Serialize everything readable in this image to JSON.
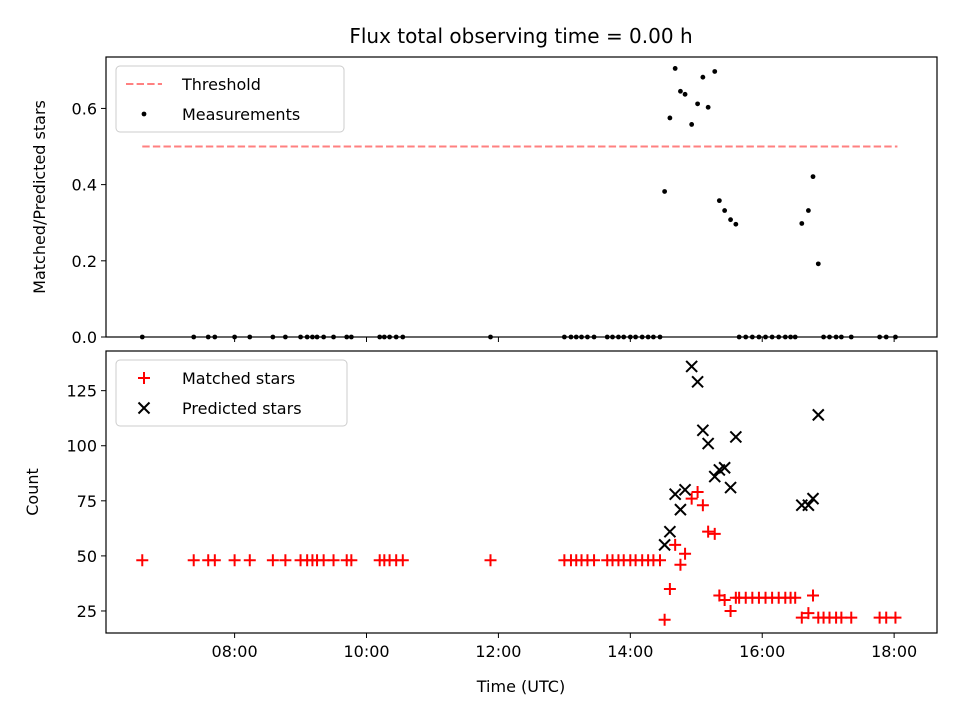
{
  "chart_data": [
    {
      "type": "scatter",
      "title": "Flux total observing time = 0.00 h",
      "ylabel": "Matched/Predicted stars",
      "xlabel": "",
      "x_unit": "hours (UTC)",
      "xlim": [
        6.05,
        18.65
      ],
      "ylim": [
        0,
        0.735
      ],
      "xticks": [
        8,
        10,
        12,
        14,
        16,
        18
      ],
      "xtick_labels": [
        "",
        "",
        "",
        "",
        "",
        ""
      ],
      "yticks": [
        0.0,
        0.2,
        0.4,
        0.6
      ],
      "ytick_labels": [
        "0.0",
        "0.2",
        "0.4",
        "0.6"
      ],
      "legend": {
        "placement": "upper-left"
      },
      "series": [
        {
          "name": "Threshold",
          "kind": "line",
          "style": "dashed",
          "color": "#ff8080",
          "x": [
            6.6,
            18.05
          ],
          "y": [
            0.5,
            0.5
          ]
        },
        {
          "name": "Measurements",
          "kind": "scatter",
          "marker": "dot",
          "color": "#000000",
          "x": [
            6.6,
            7.38,
            7.6,
            7.7,
            8.0,
            8.23,
            8.58,
            8.77,
            9.0,
            9.1,
            9.18,
            9.25,
            9.35,
            9.5,
            9.7,
            9.77,
            10.2,
            10.27,
            10.35,
            10.45,
            10.55,
            11.88,
            13.0,
            13.1,
            13.18,
            13.26,
            13.35,
            13.45,
            13.65,
            13.73,
            13.82,
            13.9,
            14.0,
            14.08,
            14.18,
            14.27,
            14.35,
            14.45,
            14.52,
            14.6,
            14.68,
            14.76,
            14.83,
            14.93,
            15.02,
            15.1,
            15.18,
            15.28,
            15.35,
            15.43,
            15.52,
            15.6,
            15.65,
            15.75,
            15.85,
            15.95,
            16.05,
            16.15,
            16.25,
            16.35,
            16.43,
            16.5,
            16.6,
            16.7,
            16.77,
            16.85,
            16.93,
            17.02,
            17.12,
            17.2,
            17.35,
            17.78,
            17.88,
            18.02
          ],
          "y": [
            0,
            0,
            0,
            0,
            0,
            0,
            0,
            0,
            0,
            0,
            0,
            0,
            0,
            0,
            0,
            0,
            0,
            0,
            0,
            0,
            0,
            0,
            0,
            0,
            0,
            0,
            0,
            0,
            0,
            0,
            0,
            0,
            0,
            0,
            0,
            0,
            0,
            0,
            0.382,
            0.575,
            0.705,
            0.645,
            0.637,
            0.558,
            0.612,
            0.682,
            0.603,
            0.697,
            0.358,
            0.332,
            0.308,
            0.296,
            0,
            0,
            0,
            0,
            0,
            0,
            0,
            0,
            0,
            0,
            0.298,
            0.332,
            0.421,
            0.192,
            0,
            0,
            0,
            0,
            0,
            0,
            0,
            0
          ]
        }
      ]
    },
    {
      "type": "scatter",
      "title": "",
      "ylabel": "Count",
      "xlabel": "Time (UTC)",
      "x_unit": "hours (UTC)",
      "xlim": [
        6.05,
        18.65
      ],
      "ylim": [
        15,
        143
      ],
      "xticks": [
        8,
        10,
        12,
        14,
        16,
        18
      ],
      "xtick_labels": [
        "08:00",
        "10:00",
        "12:00",
        "14:00",
        "16:00",
        "18:00"
      ],
      "yticks": [
        25,
        50,
        75,
        100,
        125
      ],
      "ytick_labels": [
        "25",
        "50",
        "75",
        "100",
        "125"
      ],
      "legend": {
        "placement": "upper-left"
      },
      "series": [
        {
          "name": "Matched stars",
          "kind": "scatter",
          "marker": "plus",
          "color": "#ff0000",
          "x": [
            6.6,
            7.38,
            7.6,
            7.7,
            8.0,
            8.23,
            8.58,
            8.77,
            9.0,
            9.1,
            9.18,
            9.25,
            9.35,
            9.5,
            9.7,
            9.77,
            10.2,
            10.27,
            10.35,
            10.45,
            10.55,
            11.88,
            13.0,
            13.1,
            13.18,
            13.26,
            13.35,
            13.45,
            13.65,
            13.73,
            13.82,
            13.9,
            14.0,
            14.08,
            14.18,
            14.27,
            14.35,
            14.45,
            14.52,
            14.6,
            14.68,
            14.76,
            14.83,
            14.93,
            15.02,
            15.1,
            15.18,
            15.28,
            15.35,
            15.43,
            15.52,
            15.6,
            15.65,
            15.75,
            15.85,
            15.95,
            16.05,
            16.15,
            16.25,
            16.35,
            16.43,
            16.5,
            16.6,
            16.7,
            16.77,
            16.85,
            16.93,
            17.02,
            17.12,
            17.2,
            17.35,
            17.78,
            17.88,
            18.02
          ],
          "y": [
            48,
            48,
            48,
            48,
            48,
            48,
            48,
            48,
            48,
            48,
            48,
            48,
            48,
            48,
            48,
            48,
            48,
            48,
            48,
            48,
            48,
            48,
            48,
            48,
            48,
            48,
            48,
            48,
            48,
            48,
            48,
            48,
            48,
            48,
            48,
            48,
            48,
            48,
            21,
            35,
            55,
            46,
            51,
            76,
            79,
            73,
            61,
            60,
            32,
            30,
            25,
            31,
            31,
            31,
            31,
            31,
            31,
            31,
            31,
            31,
            31,
            31,
            22,
            24,
            32,
            22,
            22,
            22,
            22,
            22,
            22,
            22,
            22,
            22
          ]
        },
        {
          "name": "Predicted stars",
          "kind": "scatter",
          "marker": "x",
          "color": "#000000",
          "x": [
            14.52,
            14.6,
            14.68,
            14.76,
            14.83,
            14.93,
            15.02,
            15.1,
            15.18,
            15.28,
            15.35,
            15.43,
            15.52,
            15.6,
            16.6,
            16.7,
            16.77,
            16.85
          ],
          "y": [
            55,
            61,
            78,
            71,
            80,
            136,
            129,
            107,
            101,
            86,
            89,
            90,
            81,
            104,
            73,
            73,
            76,
            114
          ]
        }
      ]
    }
  ]
}
